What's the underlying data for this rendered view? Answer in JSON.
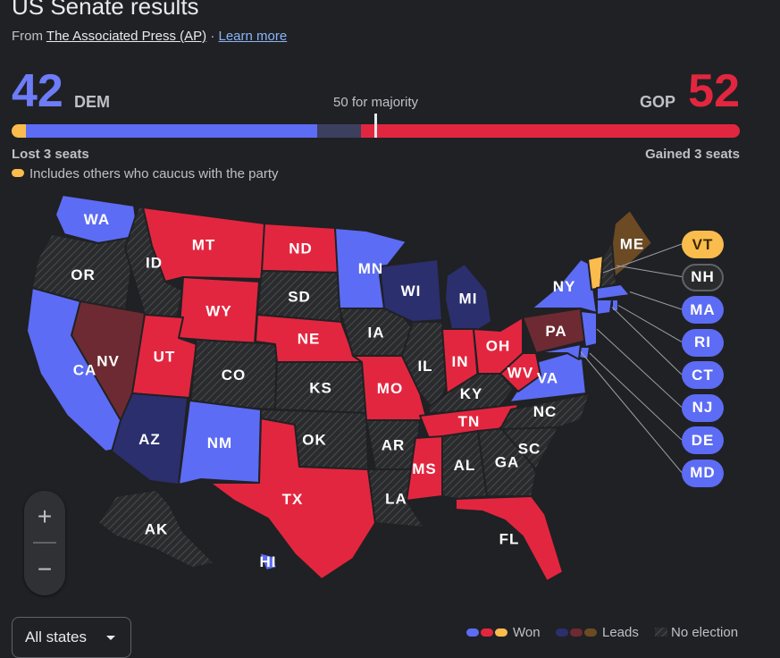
{
  "header": {
    "title": "US Senate results",
    "source_prefix": "From",
    "source_link": "The Associated Press (AP)",
    "separator": "·",
    "learn_more": "Learn more"
  },
  "tally": {
    "dem_count": "42",
    "dem_label": "DEM",
    "gop_count": "52",
    "gop_label": "GOP",
    "majority_label": "50 for majority",
    "majority_seats": 50,
    "total_seats": 100,
    "bar_segments": [
      {
        "name": "dem-caucus-others",
        "seats": 2,
        "color": "#fbbc4e"
      },
      {
        "name": "dem-won",
        "seats": 40,
        "color": "#5d6cf4"
      },
      {
        "name": "dem-leads",
        "seats": 6,
        "color": "#3c3f5e"
      },
      {
        "name": "gop-won",
        "seats": 52,
        "color": "#e3263f"
      }
    ],
    "dem_change": "Lost 3 seats",
    "gop_change": "Gained 3 seats",
    "caucus_note": "Includes others who caucus with the party"
  },
  "colors": {
    "dem_won": "#5d6cf4",
    "gop_won": "#e3263f",
    "ind_won": "#fbbc4e",
    "dem_leads": "#2b2f6e",
    "gop_leads": "#6e2a32",
    "ind_leads": "#6b4a24",
    "no_election": "#2a2b2d"
  },
  "states": {
    "WA": "dem_won",
    "OR": "no_election",
    "CA": "dem_won",
    "NV": "gop_leads",
    "ID": "no_election",
    "MT": "gop_won",
    "WY": "gop_won",
    "UT": "gop_won",
    "AZ": "dem_leads",
    "NM": "dem_won",
    "CO": "no_election",
    "ND": "gop_won",
    "SD": "no_election",
    "NE": "gop_won",
    "KS": "no_election",
    "OK": "no_election",
    "TX": "gop_won",
    "MN": "dem_won",
    "IA": "no_election",
    "MO": "gop_won",
    "AR": "no_election",
    "LA": "no_election",
    "WI": "dem_leads",
    "IL": "no_election",
    "MI": "dem_leads",
    "IN": "gop_won",
    "OH": "gop_won",
    "KY": "no_election",
    "TN": "gop_won",
    "MS": "gop_won",
    "AL": "no_election",
    "GA": "no_election",
    "FL": "gop_won",
    "SC": "no_election",
    "NC": "no_election",
    "VA": "dem_won",
    "WV": "gop_won",
    "PA": "gop_leads",
    "NY": "dem_won",
    "ME": "ind_leads",
    "VT": "ind_won",
    "NH": "no_election",
    "MA": "dem_won",
    "RI": "dem_won",
    "CT": "dem_won",
    "NJ": "dem_won",
    "DE": "dem_won",
    "MD": "dem_won",
    "AK": "no_election",
    "HI": "dem_won"
  },
  "callouts": [
    "VT",
    "NH",
    "MA",
    "RI",
    "CT",
    "NJ",
    "DE",
    "MD"
  ],
  "filter": {
    "selected": "All states"
  },
  "legend": {
    "won": "Won",
    "leads": "Leads",
    "no_election": "No election"
  },
  "zoom": {
    "in_icon": "+",
    "out_icon": "−"
  }
}
